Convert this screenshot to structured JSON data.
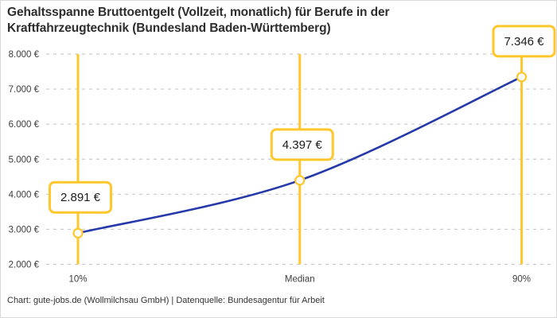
{
  "header": {
    "title": "Gehaltsspanne Bruttoentgelt (Vollzeit, monatlich) für Berufe in der Kraftfahrzeugtechnik (Bundesland Baden-Württemberg)"
  },
  "footer": {
    "credit": "Chart: gute-jobs.de (Wollmilchsau GmbH) | Datenquelle: Bundesagentur für Arbeit"
  },
  "chart_data": {
    "type": "line",
    "title": "Gehaltsspanne Bruttoentgelt (Vollzeit, monatlich) für Berufe in der Kraftfahrzeugtechnik (Bundesland Baden-Württemberg)",
    "categories": [
      "10%",
      "Median",
      "90%"
    ],
    "values": [
      2891,
      4397,
      7346
    ],
    "value_labels": [
      "2.891 €",
      "4.397 €",
      "7.346 €"
    ],
    "xlabel": "",
    "ylabel": "",
    "ylim": [
      2000,
      8000
    ],
    "ytick_step": 1000,
    "ytick_labels": [
      "2.000 €",
      "3.000 €",
      "4.000 €",
      "5.000 €",
      "6.000 €",
      "7.000 €",
      "8.000 €"
    ],
    "grid": "horizontal-dashed",
    "legend": "none",
    "colors": {
      "curve": "#2539aa",
      "percentile_line": "#ffc72c",
      "marker_fill": "#ffffff",
      "marker_stroke": "#ffc72c",
      "label_box_border": "#ffc72c",
      "label_box_fill": "#ffffff",
      "grid": "#c9c9c9",
      "tick_text": "#3d3d3d",
      "title_text": "#2d2d2d"
    }
  }
}
